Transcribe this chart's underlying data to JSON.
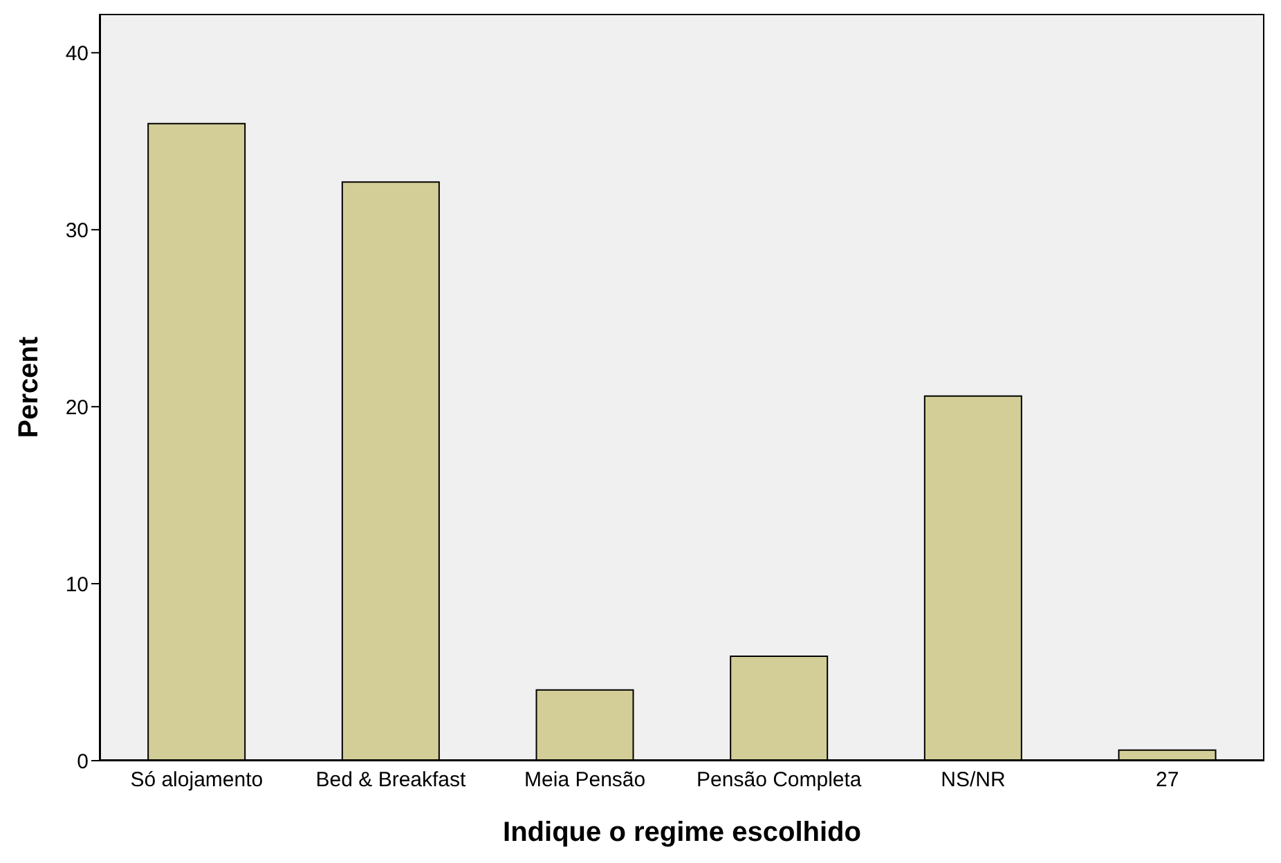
{
  "chart_data": {
    "type": "bar",
    "xlabel": "Indique o regime escolhido",
    "ylabel": "Percent",
    "categories": [
      "Só alojamento",
      "Bed & Breakfast",
      "Meia Pensão",
      "Pensão Completa",
      "NS/NR",
      "27"
    ],
    "values": [
      36.0,
      32.7,
      4.0,
      5.9,
      20.6,
      0.6
    ],
    "color": "#d3ce97",
    "ylim": [
      0,
      42.2
    ],
    "yticks": [
      0,
      10,
      20,
      30,
      40
    ],
    "grid": false
  }
}
